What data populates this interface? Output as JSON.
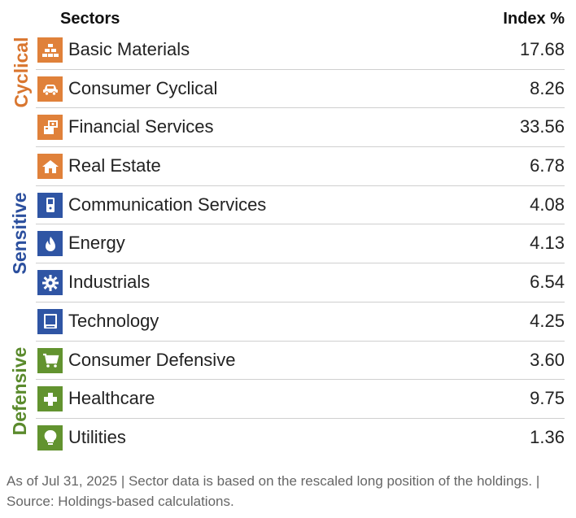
{
  "header": {
    "sectors_label": "Sectors",
    "index_label": "Index  %"
  },
  "groups": {
    "cyclical": "Cyclical",
    "sensitive": "Sensitive",
    "defensive": "Defensive"
  },
  "colors": {
    "cyclical": "#e0813a",
    "sensitive": "#2f55a4",
    "defensive": "#62932f"
  },
  "rows": [
    {
      "name": "Basic Materials",
      "value": "17.68",
      "group": "cyclical",
      "icon": "gold-bars-icon"
    },
    {
      "name": "Consumer Cyclical",
      "value": "8.26",
      "group": "cyclical",
      "icon": "car-icon"
    },
    {
      "name": "Financial Services",
      "value": "33.56",
      "group": "cyclical",
      "icon": "money-icon"
    },
    {
      "name": "Real Estate",
      "value": "6.78",
      "group": "cyclical",
      "icon": "house-icon"
    },
    {
      "name": "Communication Services",
      "value": "4.08",
      "group": "sensitive",
      "icon": "phone-icon"
    },
    {
      "name": "Energy",
      "value": "4.13",
      "group": "sensitive",
      "icon": "flame-icon"
    },
    {
      "name": "Industrials",
      "value": "6.54",
      "group": "sensitive",
      "icon": "gear-icon"
    },
    {
      "name": "Technology",
      "value": "4.25",
      "group": "sensitive",
      "icon": "computer-icon"
    },
    {
      "name": "Consumer Defensive",
      "value": "3.60",
      "group": "defensive",
      "icon": "cart-icon"
    },
    {
      "name": "Healthcare",
      "value": "9.75",
      "group": "defensive",
      "icon": "medical-cross-icon"
    },
    {
      "name": "Utilities",
      "value": "1.36",
      "group": "defensive",
      "icon": "lightbulb-icon"
    }
  ],
  "footer": {
    "line1": "As of Jul 31, 2025 | Sector data is based on the rescaled long position of the holdings. |",
    "line2": "Source: Holdings-based calculations."
  }
}
